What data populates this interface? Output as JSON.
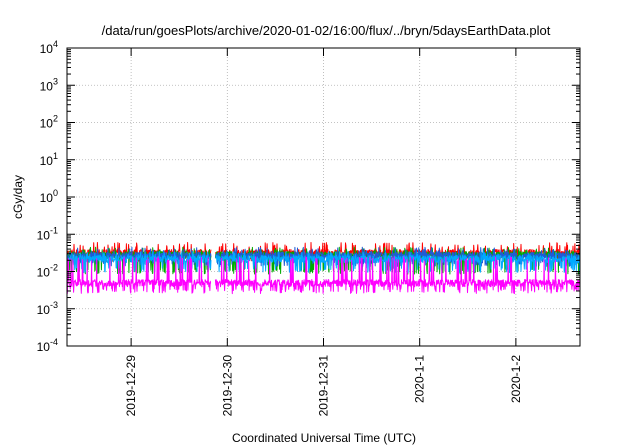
{
  "chart_data": {
    "type": "line",
    "title": "/data/run/goesPlots/archive/2020-01-02/16:00/flux/../bryn/5daysEarthData.plot",
    "xlabel": "Coordinated Universal Time (UTC)",
    "ylabel": "cGy/day",
    "yscale": "log",
    "ylim": [
      0.0001,
      10000
    ],
    "xlim": [
      "2019-12-28T08:00",
      "2020-01-02T16:00"
    ],
    "grid": true,
    "x_ticks": [
      {
        "label": "2019-12-29",
        "x": "2019-12-29T00:00"
      },
      {
        "label": "2019-12-30",
        "x": "2019-12-30T00:00"
      },
      {
        "label": "2019-12-31",
        "x": "2019-12-31T00:00"
      },
      {
        "label": "2020-1-1",
        "x": "2020-01-01T00:00"
      },
      {
        "label": "2020-1-2",
        "x": "2020-01-02T00:00"
      }
    ],
    "y_ticks": [
      {
        "base": "10",
        "exp": "4",
        "value": 10000
      },
      {
        "base": "10",
        "exp": "3",
        "value": 1000
      },
      {
        "base": "10",
        "exp": "2",
        "value": 100
      },
      {
        "base": "10",
        "exp": "1",
        "value": 10
      },
      {
        "base": "10",
        "exp": "0",
        "value": 1
      },
      {
        "base": "10",
        "exp": "-1",
        "value": 0.1
      },
      {
        "base": "10",
        "exp": "-2",
        "value": 0.01
      },
      {
        "base": "10",
        "exp": "-3",
        "value": 0.001
      },
      {
        "base": "10",
        "exp": "-4",
        "value": 0.0001
      }
    ],
    "gap": [
      "2019-12-29T20:00",
      "2019-12-29T21:00"
    ],
    "series": [
      {
        "color": "#ff0000",
        "base": 0.032,
        "low": 0.022,
        "high": 0.06
      },
      {
        "color": "#00aa00",
        "base": 0.028,
        "low": 0.01,
        "high": 0.045
      },
      {
        "color": "#1f5bd6",
        "base": 0.027,
        "low": 0.016,
        "high": 0.045
      },
      {
        "color": "#00aaff",
        "base": 0.022,
        "low": 0.011,
        "high": 0.035
      },
      {
        "color": "#ff00ff",
        "base": 0.005,
        "low": 0.003,
        "high": 0.025
      }
    ]
  }
}
